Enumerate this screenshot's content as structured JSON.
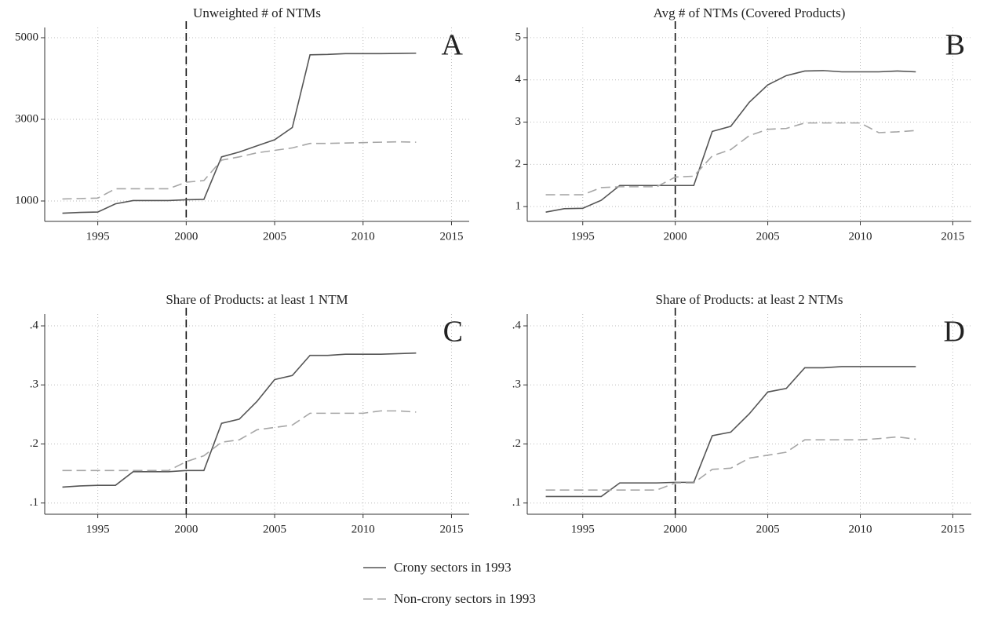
{
  "chart_data": [
    {
      "type": "line",
      "title": "Unweighted # of NTMs",
      "annotation": "A",
      "vline": 2000,
      "x": [
        1993,
        1994,
        1995,
        1996,
        1997,
        1998,
        1999,
        2000,
        2001,
        2002,
        2003,
        2004,
        2005,
        2006,
        2007,
        2008,
        2009,
        2010,
        2011,
        2012,
        2013
      ],
      "series": [
        {
          "name": "Crony sectors in 1993",
          "color": "#555555",
          "style": "solid",
          "values": [
            700,
            720,
            730,
            930,
            1010,
            1010,
            1010,
            1030,
            1040,
            2080,
            2200,
            2350,
            2500,
            2800,
            4580,
            4590,
            4610,
            4610,
            4610,
            4615,
            4620
          ]
        },
        {
          "name": "Non-crony sectors in 1993",
          "color": "#a6a6a6",
          "style": "dashed",
          "values": [
            1050,
            1060,
            1070,
            1300,
            1300,
            1300,
            1300,
            1460,
            1500,
            2000,
            2080,
            2180,
            2240,
            2300,
            2410,
            2410,
            2420,
            2430,
            2440,
            2450,
            2440
          ]
        }
      ],
      "xlim": [
        1992,
        2016
      ],
      "xticks": [
        1995,
        2000,
        2005,
        2010,
        2015
      ],
      "ylim": [
        500,
        5250
      ],
      "yticks": [
        1000,
        3000,
        5000
      ],
      "grid": true
    },
    {
      "type": "line",
      "title": "Avg # of NTMs (Covered Products)",
      "annotation": "B",
      "vline": 2000,
      "x": [
        1993,
        1994,
        1995,
        1996,
        1997,
        1998,
        1999,
        2000,
        2001,
        2002,
        2003,
        2004,
        2005,
        2006,
        2007,
        2008,
        2009,
        2010,
        2011,
        2012,
        2013
      ],
      "series": [
        {
          "color": "#555555",
          "style": "solid",
          "values": [
            0.87,
            0.95,
            0.96,
            1.15,
            1.5,
            1.5,
            1.5,
            1.5,
            1.5,
            2.78,
            2.9,
            3.47,
            3.88,
            4.1,
            4.21,
            4.22,
            4.19,
            4.19,
            4.19,
            4.21,
            4.19
          ]
        },
        {
          "color": "#a6a6a6",
          "style": "dashed",
          "values": [
            1.28,
            1.28,
            1.28,
            1.45,
            1.47,
            1.47,
            1.47,
            1.7,
            1.72,
            2.2,
            2.35,
            2.68,
            2.83,
            2.85,
            2.98,
            2.98,
            2.98,
            2.98,
            2.75,
            2.77,
            2.8
          ]
        }
      ],
      "xlim": [
        1992,
        2016
      ],
      "xticks": [
        1995,
        2000,
        2005,
        2010,
        2015
      ],
      "ylim": [
        0.65,
        5.24
      ],
      "yticks": [
        1,
        2,
        3,
        4,
        5
      ],
      "grid": true
    },
    {
      "type": "line",
      "title": "Share of Products: at least 1 NTM",
      "annotation": "C",
      "vline": 2000,
      "x": [
        1993,
        1994,
        1995,
        1996,
        1997,
        1998,
        1999,
        2000,
        2001,
        2002,
        2003,
        2004,
        2005,
        2006,
        2007,
        2008,
        2009,
        2010,
        2011,
        2012,
        2013
      ],
      "series": [
        {
          "color": "#555555",
          "style": "solid",
          "values": [
            0.127,
            0.129,
            0.13,
            0.13,
            0.153,
            0.153,
            0.153,
            0.155,
            0.155,
            0.235,
            0.242,
            0.272,
            0.309,
            0.316,
            0.35,
            0.35,
            0.352,
            0.352,
            0.352,
            0.353,
            0.354
          ]
        },
        {
          "color": "#a6a6a6",
          "style": "dashed",
          "values": [
            0.155,
            0.155,
            0.155,
            0.155,
            0.155,
            0.155,
            0.155,
            0.17,
            0.18,
            0.203,
            0.207,
            0.224,
            0.228,
            0.232,
            0.252,
            0.252,
            0.252,
            0.252,
            0.256,
            0.256,
            0.254
          ]
        }
      ],
      "xlim": [
        1992,
        2016
      ],
      "xticks": [
        1995,
        2000,
        2005,
        2010,
        2015
      ],
      "ylim": [
        0.081,
        0.42
      ],
      "yticks": [
        {
          "value": 0.1,
          "label": ".1"
        },
        {
          "value": 0.2,
          "label": ".2"
        },
        {
          "value": 0.3,
          "label": ".3"
        },
        {
          "value": 0.4,
          "label": ".4"
        }
      ],
      "grid": true
    },
    {
      "type": "line",
      "title": "Share of Products: at least 2 NTMs",
      "annotation": "D",
      "vline": 2000,
      "x": [
        1993,
        1994,
        1995,
        1996,
        1997,
        1998,
        1999,
        2000,
        2001,
        2002,
        2003,
        2004,
        2005,
        2006,
        2007,
        2008,
        2009,
        2010,
        2011,
        2012,
        2013
      ],
      "series": [
        {
          "color": "#555555",
          "style": "solid",
          "values": [
            0.111,
            0.111,
            0.111,
            0.111,
            0.134,
            0.134,
            0.134,
            0.135,
            0.135,
            0.214,
            0.22,
            0.251,
            0.288,
            0.294,
            0.329,
            0.329,
            0.331,
            0.331,
            0.331,
            0.331,
            0.331
          ]
        },
        {
          "color": "#a6a6a6",
          "style": "dashed",
          "values": [
            0.122,
            0.122,
            0.122,
            0.122,
            0.122,
            0.122,
            0.122,
            0.134,
            0.134,
            0.157,
            0.159,
            0.176,
            0.181,
            0.186,
            0.207,
            0.207,
            0.207,
            0.207,
            0.209,
            0.212,
            0.208
          ]
        }
      ],
      "xlim": [
        1992,
        2016
      ],
      "xticks": [
        1995,
        2000,
        2005,
        2010,
        2015
      ],
      "ylim": [
        0.081,
        0.42
      ],
      "yticks": [
        {
          "value": 0.1,
          "label": ".1"
        },
        {
          "value": 0.2,
          "label": ".2"
        },
        {
          "value": 0.3,
          "label": ".3"
        },
        {
          "value": 0.4,
          "label": ".4"
        }
      ],
      "grid": true
    }
  ]
}
